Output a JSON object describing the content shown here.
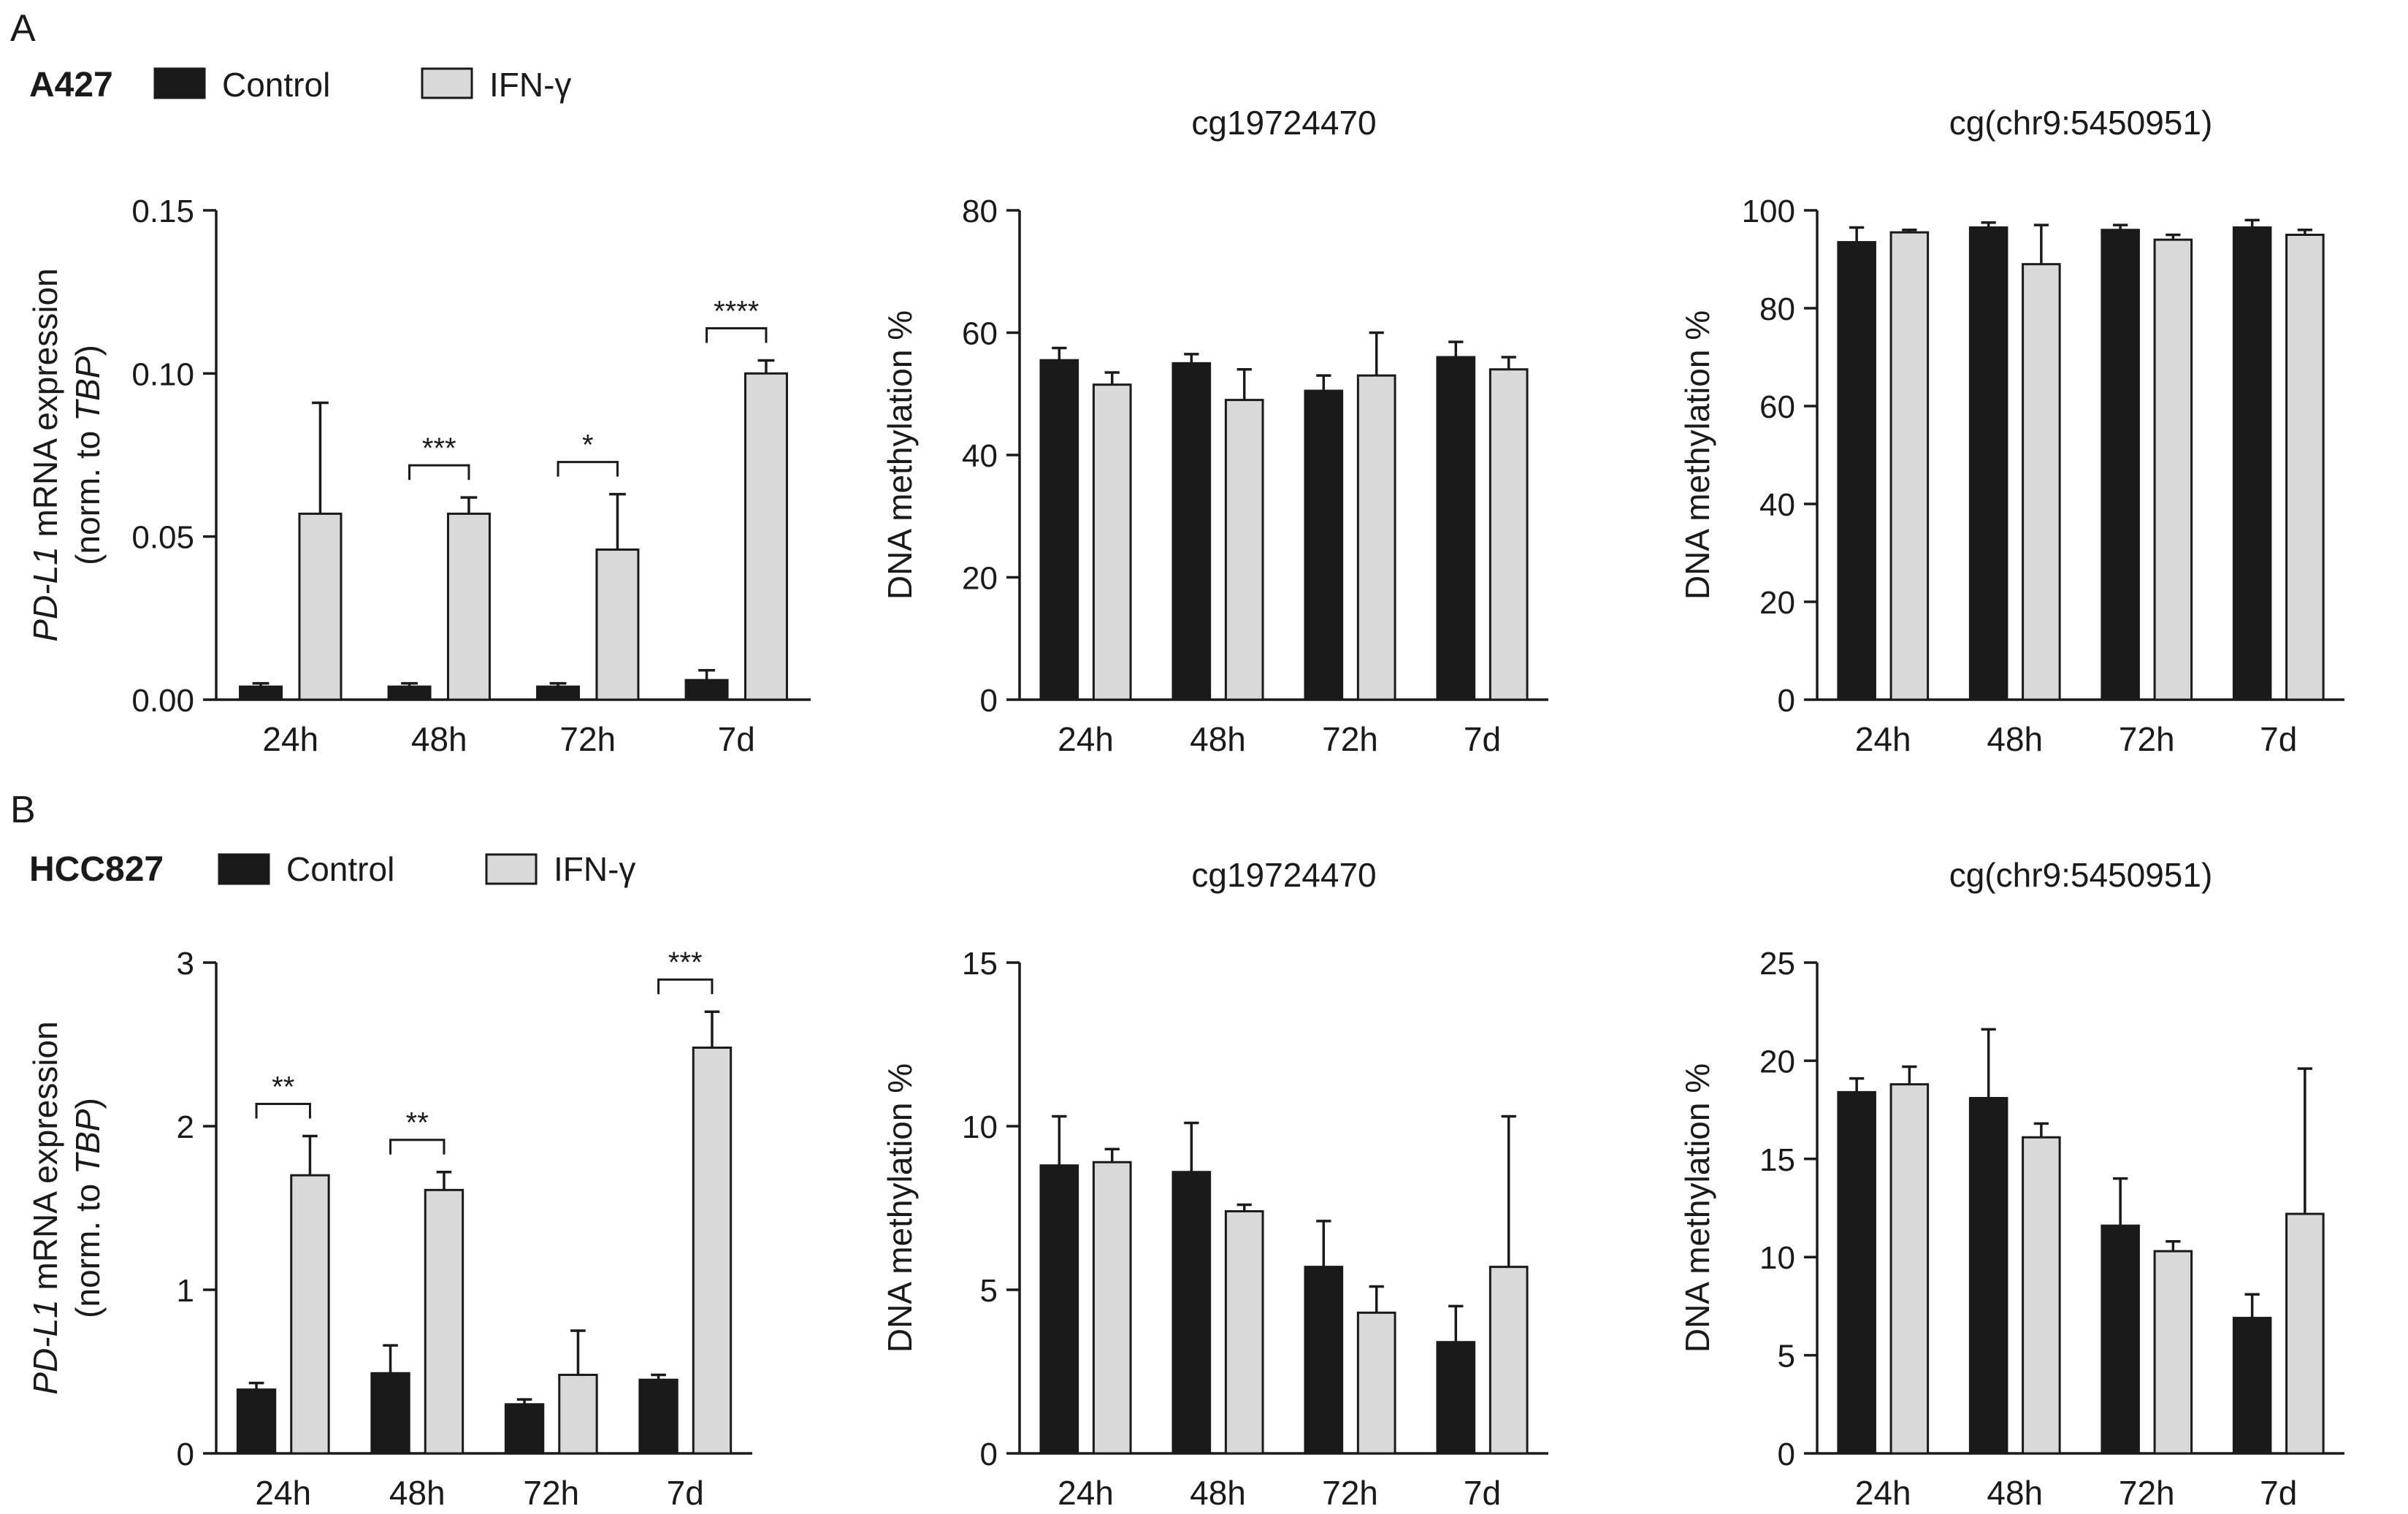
{
  "figure": {
    "panels": [
      {
        "label": "A",
        "cell_line": "A427",
        "legend": [
          {
            "name": "Control",
            "color": "#1a1a1a"
          },
          {
            "name": "IFN-γ",
            "color": "#d9d9d9"
          }
        ]
      },
      {
        "label": "B",
        "cell_line": "HCC827",
        "legend": [
          {
            "name": "Control",
            "color": "#1a1a1a"
          },
          {
            "name": "IFN-γ",
            "color": "#d9d9d9"
          }
        ]
      }
    ]
  },
  "chart_data": [
    {
      "id": "a427-expression",
      "type": "bar",
      "title": "",
      "ylabel_italic": "PD-L1",
      "ylabel_rest": " mRNA expression",
      "ylabel2_prefix": "(norm. to ",
      "ylabel2_italic": "TBP",
      "ylabel2_suffix": ")",
      "categories": [
        "24h",
        "48h",
        "72h",
        "7d"
      ],
      "ylim": [
        0,
        0.15
      ],
      "yticks": [
        "0.00",
        "0.05",
        "0.10",
        "0.15"
      ],
      "series": [
        {
          "name": "Control",
          "values": [
            0.004,
            0.004,
            0.004,
            0.006
          ],
          "errors": [
            0.001,
            0.001,
            0.001,
            0.003
          ]
        },
        {
          "name": "IFN-γ",
          "values": [
            0.057,
            0.057,
            0.046,
            0.1
          ],
          "errors": [
            0.034,
            0.005,
            0.017,
            0.004
          ]
        }
      ],
      "significance": [
        {
          "category": "48h",
          "text": "***"
        },
        {
          "category": "72h",
          "text": "*"
        },
        {
          "category": "7d",
          "text": "****"
        }
      ]
    },
    {
      "id": "a427-cg19724470",
      "type": "bar",
      "title": "cg19724470",
      "ylabel_rest": "DNA methylation %",
      "categories": [
        "24h",
        "48h",
        "72h",
        "7d"
      ],
      "ylim": [
        0,
        80
      ],
      "yticks": [
        "0",
        "20",
        "40",
        "60",
        "80"
      ],
      "series": [
        {
          "name": "Control",
          "values": [
            55.5,
            55,
            50.5,
            56
          ],
          "errors": [
            2,
            1.5,
            2.5,
            2.5
          ]
        },
        {
          "name": "IFN-γ",
          "values": [
            51.5,
            49,
            53,
            54
          ],
          "errors": [
            2,
            5,
            7,
            2
          ]
        }
      ],
      "significance": []
    },
    {
      "id": "a427-chr9",
      "type": "bar",
      "title": "cg(chr9:5450951)",
      "ylabel_rest": "DNA methylation %",
      "categories": [
        "24h",
        "48h",
        "72h",
        "7d"
      ],
      "ylim": [
        0,
        100
      ],
      "yticks": [
        "0",
        "20",
        "40",
        "60",
        "80",
        "100"
      ],
      "series": [
        {
          "name": "Control",
          "values": [
            93.5,
            96.5,
            96,
            96.5
          ],
          "errors": [
            3,
            1,
            1,
            1.5
          ]
        },
        {
          "name": "IFN-γ",
          "values": [
            95.5,
            89,
            94,
            95
          ],
          "errors": [
            0.5,
            8,
            1,
            1
          ]
        }
      ],
      "significance": []
    },
    {
      "id": "hcc827-expression",
      "type": "bar",
      "title": "",
      "ylabel_italic": "PD-L1",
      "ylabel_rest": " mRNA expression",
      "ylabel2_prefix": "(norm. to ",
      "ylabel2_italic": "TBP",
      "ylabel2_suffix": ")",
      "categories": [
        "24h",
        "48h",
        "72h",
        "7d"
      ],
      "ylim": [
        0,
        3
      ],
      "yticks": [
        "0",
        "1",
        "2",
        "3"
      ],
      "series": [
        {
          "name": "Control",
          "values": [
            0.39,
            0.49,
            0.3,
            0.45
          ],
          "errors": [
            0.04,
            0.17,
            0.03,
            0.03
          ]
        },
        {
          "name": "IFN-γ",
          "values": [
            1.7,
            1.61,
            0.48,
            2.48
          ],
          "errors": [
            0.24,
            0.11,
            0.27,
            0.22
          ]
        }
      ],
      "significance": [
        {
          "category": "24h",
          "text": "**"
        },
        {
          "category": "48h",
          "text": "**"
        },
        {
          "category": "7d",
          "text": "***"
        }
      ]
    },
    {
      "id": "hcc827-cg19724470",
      "type": "bar",
      "title": "cg19724470",
      "ylabel_rest": "DNA methylation %",
      "categories": [
        "24h",
        "48h",
        "72h",
        "7d"
      ],
      "ylim": [
        0,
        15
      ],
      "yticks": [
        "0",
        "5",
        "10",
        "15"
      ],
      "series": [
        {
          "name": "Control",
          "values": [
            8.8,
            8.6,
            5.7,
            3.4
          ],
          "errors": [
            1.5,
            1.5,
            1.4,
            1.1
          ]
        },
        {
          "name": "IFN-γ",
          "values": [
            8.9,
            7.4,
            4.3,
            5.7
          ],
          "errors": [
            0.4,
            0.2,
            0.8,
            4.6
          ]
        }
      ],
      "significance": []
    },
    {
      "id": "hcc827-chr9",
      "type": "bar",
      "title": "cg(chr9:5450951)",
      "ylabel_rest": "DNA methylation %",
      "categories": [
        "24h",
        "48h",
        "72h",
        "7d"
      ],
      "ylim": [
        0,
        25
      ],
      "yticks": [
        "0",
        "5",
        "10",
        "15",
        "20",
        "25"
      ],
      "series": [
        {
          "name": "Control",
          "values": [
            18.4,
            18.1,
            11.6,
            6.9
          ],
          "errors": [
            0.7,
            3.5,
            2.4,
            1.2
          ]
        },
        {
          "name": "IFN-γ",
          "values": [
            18.8,
            16.1,
            10.3,
            12.2
          ],
          "errors": [
            0.9,
            0.7,
            0.5,
            7.4
          ]
        }
      ],
      "significance": []
    }
  ]
}
